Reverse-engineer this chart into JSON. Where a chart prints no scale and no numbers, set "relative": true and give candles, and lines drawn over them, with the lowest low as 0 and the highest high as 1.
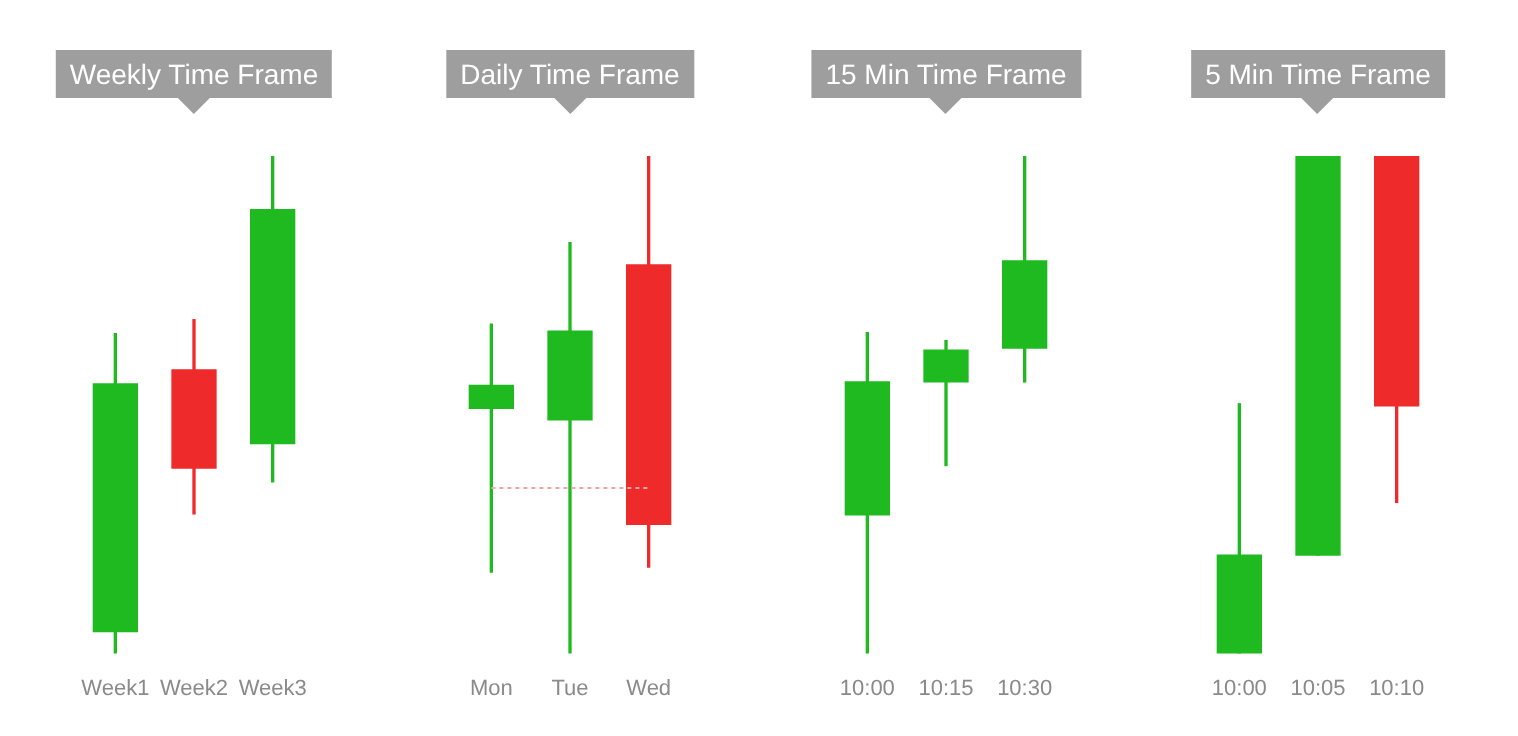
{
  "chart_data": [
    {
      "type": "candlestick",
      "title": "Weekly Time Frame",
      "relative": true,
      "categories": [
        "Week1",
        "Week2",
        "Week3"
      ],
      "ohlc": [
        [
          0.044,
          0.643,
          0,
          0.542
        ],
        [
          0.57,
          0.671,
          0.281,
          0.373
        ],
        [
          0.422,
          1,
          0.345,
          0.892
        ]
      ],
      "colors": [
        "#1fba1f",
        "#ee2a2a",
        "#1fba1f"
      ]
    },
    {
      "type": "candlestick",
      "title": "Daily Time Frame",
      "relative": true,
      "categories": [
        "Mon",
        "Tue",
        "Wed"
      ],
      "ohlc": [
        [
          0.493,
          0.662,
          0.164,
          0.539
        ],
        [
          0.47,
          0.826,
          0,
          0.648
        ],
        [
          0.781,
          1,
          0.174,
          0.26
        ]
      ],
      "colors": [
        "#1fba1f",
        "#1fba1f",
        "#ee2a2a"
      ],
      "ref_lines": [
        {
          "axis": "y",
          "value": 0.333,
          "color": "#f2a5a5",
          "line_style": "dotted"
        }
      ]
    },
    {
      "type": "candlestick",
      "title": "15 Min Time Frame",
      "relative": true,
      "categories": [
        "10:00",
        "10:15",
        "10:30"
      ],
      "ohlc": [
        [
          0.279,
          0.645,
          0,
          0.546
        ],
        [
          0.546,
          0.629,
          0.378,
          0.61
        ],
        [
          0.614,
          1,
          0.546,
          0.789
        ]
      ],
      "colors": [
        "#1fba1f",
        "#1fba1f",
        "#1fba1f"
      ]
    },
    {
      "type": "candlestick",
      "title": "5 Min Time Frame",
      "relative": true,
      "categories": [
        "10:00",
        "10:05",
        "10:10"
      ],
      "ohlc": [
        [
          0,
          0.502,
          0,
          0.198
        ],
        [
          0.198,
          1,
          0.198,
          1
        ],
        [
          1,
          1,
          0.304,
          0.498
        ]
      ],
      "colors": [
        "#1fba1f",
        "#1fba1f",
        "#ee2a2a"
      ]
    }
  ]
}
